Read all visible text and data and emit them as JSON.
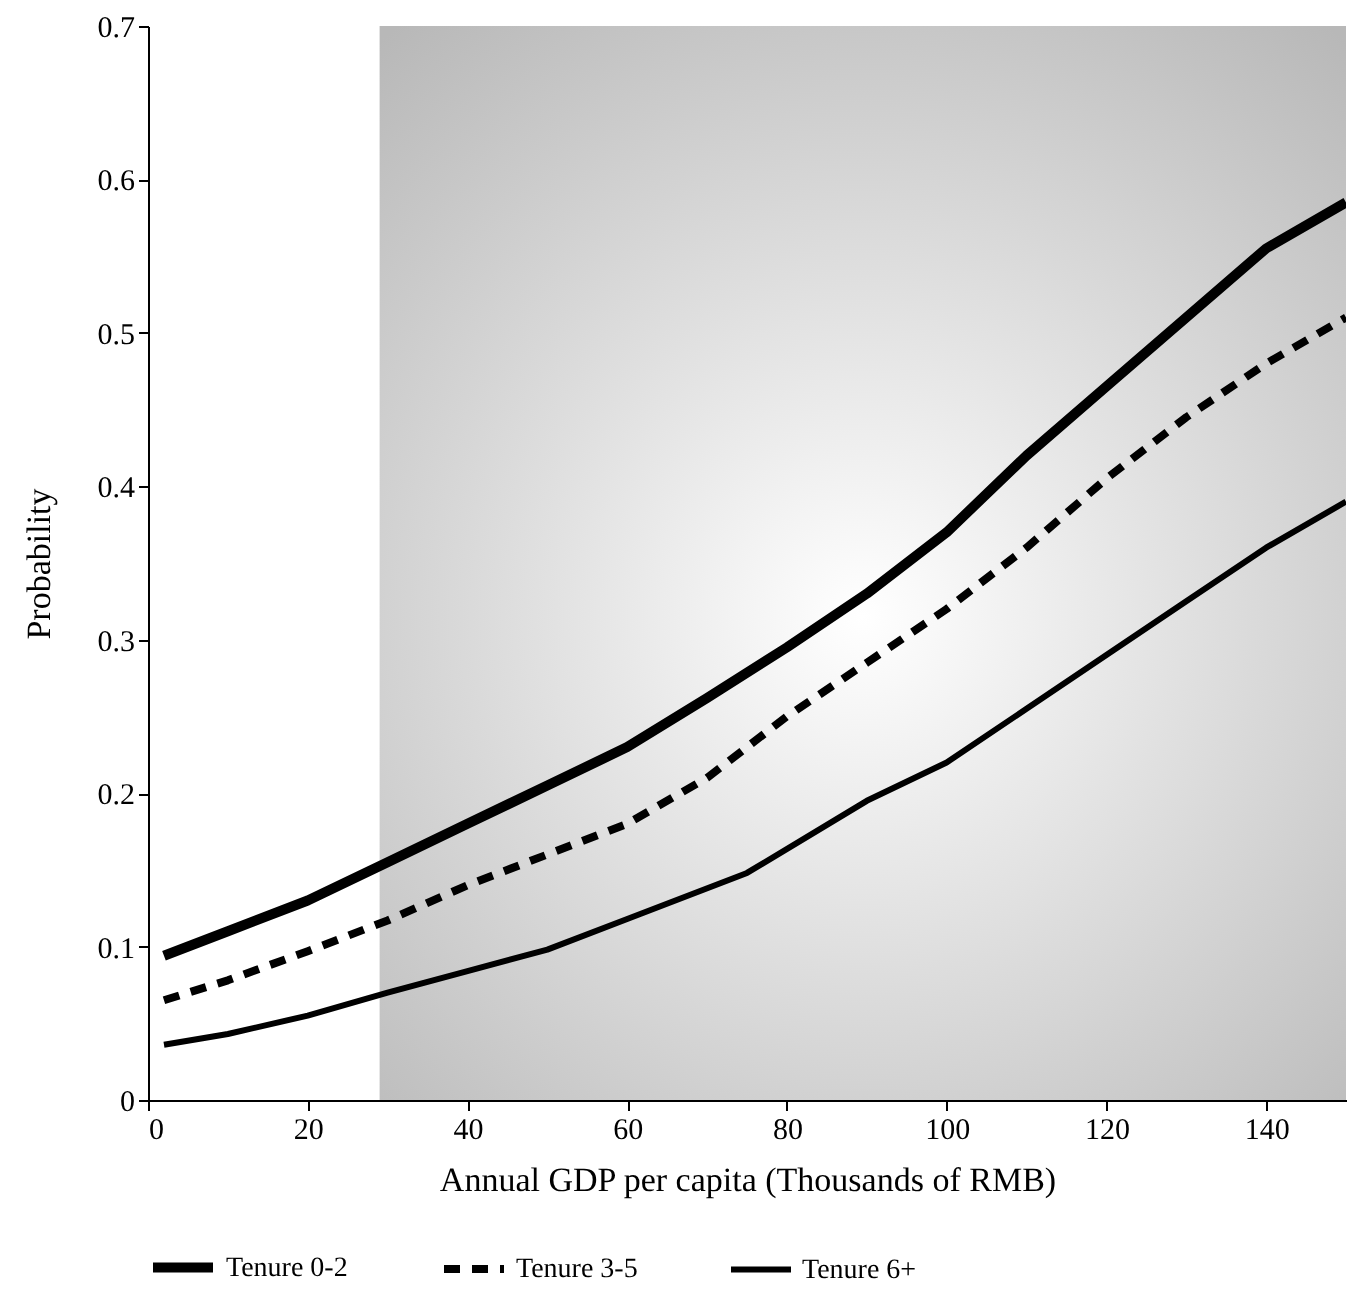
{
  "chart_data": {
    "type": "line",
    "xlabel": "Annual GDP per capita (Thousands of RMB)",
    "ylabel": "Probability",
    "xlim": [
      0,
      150
    ],
    "ylim": [
      0,
      0.7
    ],
    "xticks": [
      0,
      20,
      40,
      60,
      80,
      100,
      120,
      140
    ],
    "yticks": [
      {
        "value": 0,
        "label": "0"
      },
      0.1,
      0.2,
      0.3,
      0.4,
      0.5,
      0.6,
      0.7
    ],
    "grid": false,
    "legend": "bottom",
    "marker": "none",
    "bands": [
      {
        "axis": "x",
        "from": 29,
        "to": 150,
        "color": "#b8b8b8"
      }
    ],
    "series": [
      {
        "name": "Tenure 0-2",
        "color": "#000000",
        "line_style": "solid",
        "x": [
          2,
          10,
          20,
          30,
          40,
          50,
          60,
          70,
          80,
          90,
          100,
          110,
          120,
          130,
          140,
          150
        ],
        "values": [
          0.094,
          0.11,
          0.13,
          0.155,
          0.18,
          0.205,
          0.23,
          0.262,
          0.295,
          0.33,
          0.37,
          0.42,
          0.465,
          0.51,
          0.555,
          0.585
        ]
      },
      {
        "name": "Tenure 3-5",
        "color": "#000000",
        "line_style": "dashed",
        "x": [
          2,
          10,
          20,
          30,
          40,
          50,
          60,
          70,
          80,
          90,
          100,
          110,
          120,
          130,
          140,
          150
        ],
        "values": [
          0.065,
          0.078,
          0.097,
          0.117,
          0.14,
          0.16,
          0.18,
          0.21,
          0.25,
          0.285,
          0.32,
          0.36,
          0.405,
          0.445,
          0.48,
          0.51
        ]
      },
      {
        "name": "Tenure 6+",
        "color": "#000000",
        "line_style": "solid",
        "x": [
          2,
          10,
          20,
          30,
          40,
          50,
          60,
          75,
          90,
          100,
          110,
          120,
          130,
          140,
          150
        ],
        "values": [
          0.036,
          0.043,
          0.055,
          0.07,
          0.084,
          0.098,
          0.118,
          0.148,
          0.195,
          0.22,
          0.255,
          0.29,
          0.325,
          0.36,
          0.39
        ]
      }
    ]
  }
}
